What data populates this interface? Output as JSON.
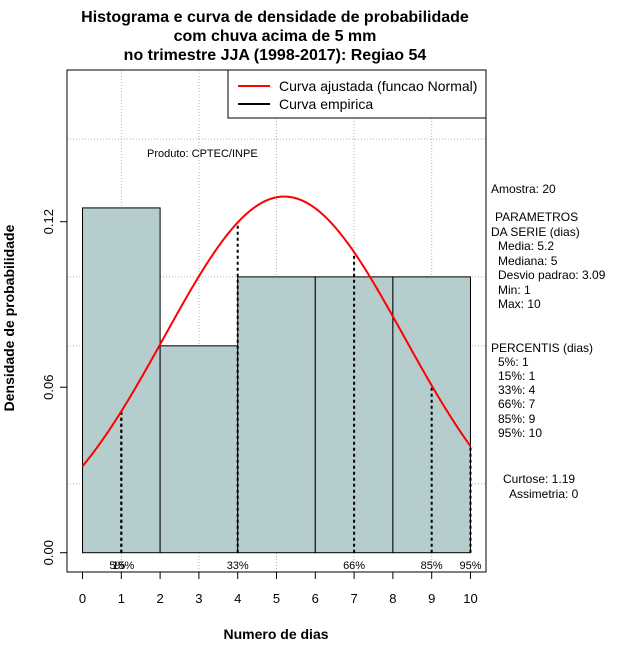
{
  "chart_data": {
    "type": "bar",
    "title_lines": [
      "Histograma e curva de densidade de probabilidade",
      "com chuva acima de 5 mm",
      "no trimestre JJA (1998-2017): Regiao 54"
    ],
    "xlabel": "Numero de dias",
    "ylabel": "Densidade de probabilidade",
    "xlim": [
      -0.4,
      10.4
    ],
    "ylim": [
      -0.007,
      0.175
    ],
    "x_ticks": [
      0,
      1,
      2,
      3,
      4,
      5,
      6,
      7,
      8,
      9,
      10
    ],
    "y_ticks": [
      0.0,
      0.06,
      0.12
    ],
    "y_tick_labels": [
      "0.00",
      "0.06",
      "0.12"
    ],
    "grid_x": [
      1,
      3,
      5,
      7,
      9
    ],
    "grid_y": [
      0.025,
      0.075,
      0.1,
      0.15
    ],
    "histogram": {
      "bins": [
        [
          0,
          2
        ],
        [
          2,
          4
        ],
        [
          4,
          6
        ],
        [
          6,
          8
        ],
        [
          8,
          10
        ]
      ],
      "density": [
        0.125,
        0.075,
        0.1,
        0.1,
        0.1
      ],
      "color": "#b5cdcd"
    },
    "normal_curve": {
      "mean": 5.2,
      "sd": 3.09,
      "color": "#ff0000"
    },
    "percentile_lines": [
      {
        "label": "5%",
        "x": 1
      },
      {
        "label": "15%",
        "x": 1
      },
      {
        "label": "33%",
        "x": 4
      },
      {
        "label": "66%",
        "x": 7
      },
      {
        "label": "85%",
        "x": 9
      },
      {
        "label": "95%",
        "x": 10
      }
    ],
    "legend": [
      {
        "label": "Curva ajustada (funcao Normal)",
        "color": "#ff0000"
      },
      {
        "label": "Curva empirica",
        "color": "#000000"
      }
    ],
    "legend_position": "top-right",
    "annotation": "Produto: CPTEC/INPE"
  },
  "stats_panel": {
    "amostra": "Amostra: 20",
    "params_title_1": "PARAMETROS",
    "params_title_2": "DA SERIE (dias)",
    "media": "Media: 5.2",
    "mediana": "Mediana: 5",
    "desvio": "Desvio padrao: 3.09",
    "min": "Min: 1",
    "max": "Max: 10",
    "percentis_title": "PERCENTIS (dias)",
    "p5": "5%: 1",
    "p15": "15%: 1",
    "p33": "33%: 4",
    "p66": "66%: 7",
    "p85": "85%: 9",
    "p95": "95%: 10",
    "curtose": "Curtose: 1.19",
    "assimetria": "Assimetria: 0"
  }
}
